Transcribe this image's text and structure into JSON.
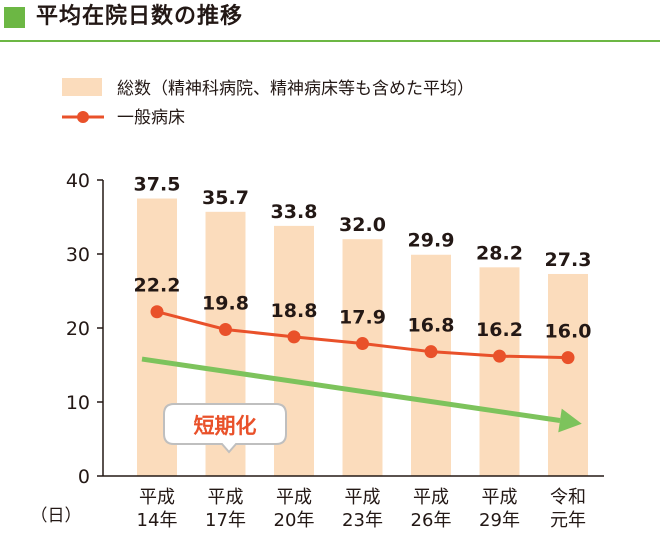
{
  "header": {
    "title": "平均在院日数の推移"
  },
  "colors": {
    "accent_green": "#6cb744",
    "bar": "#fbdcbc",
    "line": "#e9512a",
    "trend": "#7dc35c",
    "text": "#231815"
  },
  "chart_data": {
    "type": "bar",
    "title": "平均在院日数の推移",
    "ylabel": "（日）",
    "ylim": [
      0,
      40
    ],
    "yticks": [
      "0",
      "10",
      "20",
      "30",
      "40"
    ],
    "categories": [
      [
        "平成",
        "14年"
      ],
      [
        "平成",
        "17年"
      ],
      [
        "平成",
        "20年"
      ],
      [
        "平成",
        "23年"
      ],
      [
        "平成",
        "26年"
      ],
      [
        "平成",
        "29年"
      ],
      [
        "令和",
        "元年"
      ]
    ],
    "series": [
      {
        "name": "総数（精神科病院、精神病床等も含めた平均）",
        "type": "bar",
        "values": [
          37.5,
          35.7,
          33.8,
          32.0,
          29.9,
          28.2,
          27.3
        ],
        "labels": [
          "37.5",
          "35.7",
          "33.8",
          "32.0",
          "29.9",
          "28.2",
          "27.3"
        ]
      },
      {
        "name": "一般病床",
        "type": "line",
        "values": [
          22.2,
          19.8,
          18.8,
          17.9,
          16.8,
          16.2,
          16.0
        ],
        "labels": [
          "22.2",
          "19.8",
          "18.8",
          "17.9",
          "16.8",
          "16.2",
          "16.0"
        ]
      }
    ],
    "annotation": {
      "text": "短期化",
      "trend_from": 15.8,
      "trend_to": 7.5
    }
  }
}
